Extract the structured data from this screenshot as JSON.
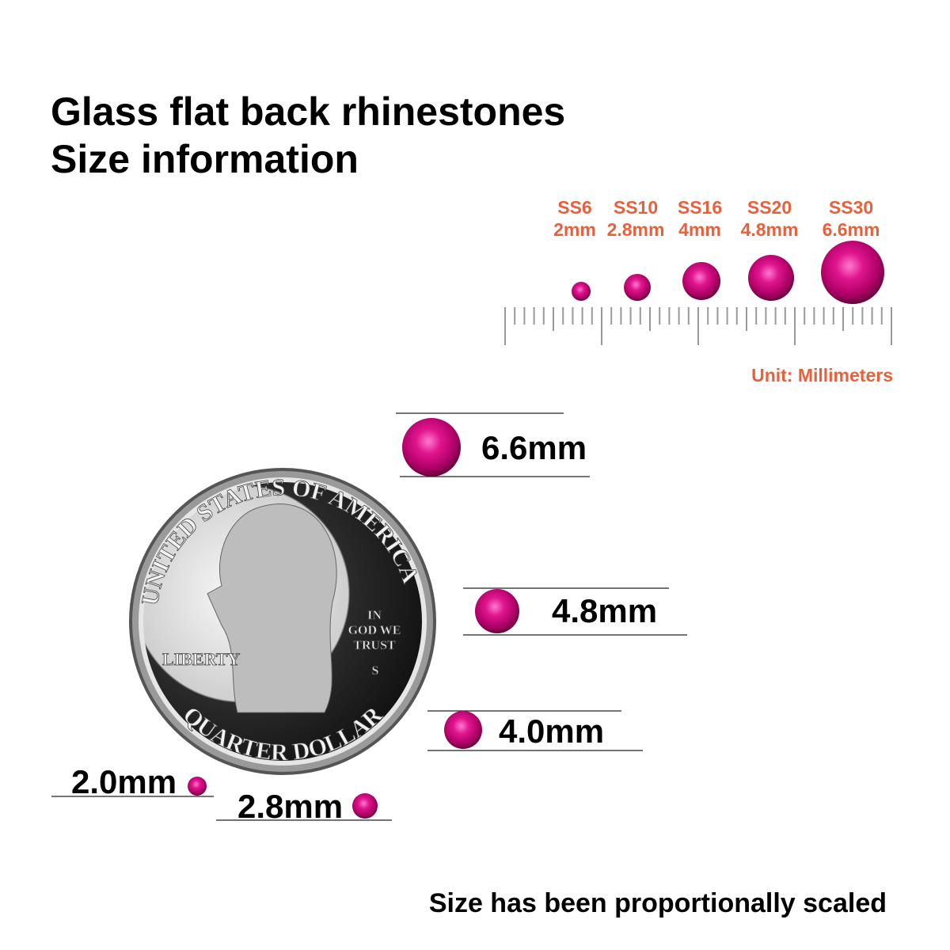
{
  "header": {
    "title_line1": "Glass flat back rhinestones",
    "title_line2": "Size information"
  },
  "size_chart": {
    "items": [
      {
        "code": "SS6",
        "size": "2mm"
      },
      {
        "code": "SS10",
        "size": "2.8mm"
      },
      {
        "code": "SS16",
        "size": "4mm"
      },
      {
        "code": "SS20",
        "size": "4.8mm"
      },
      {
        "code": "SS30",
        "size": "6.6mm"
      }
    ],
    "unit": "Unit: Millimeters"
  },
  "comparison": {
    "labels": [
      "6.6mm",
      "4.8mm",
      "4.0mm",
      "2.0mm",
      "2.8mm"
    ]
  },
  "coin": {
    "top_text": "UNITED STATES OF AMERICA",
    "motto": [
      "IN",
      "GOD WE",
      "TRUST"
    ],
    "left_text": "LIBERTY",
    "mint_mark": "S",
    "bottom_text": "QUARTER DOLLAR"
  },
  "footer": {
    "note": "Size has been proportionally scaled"
  }
}
